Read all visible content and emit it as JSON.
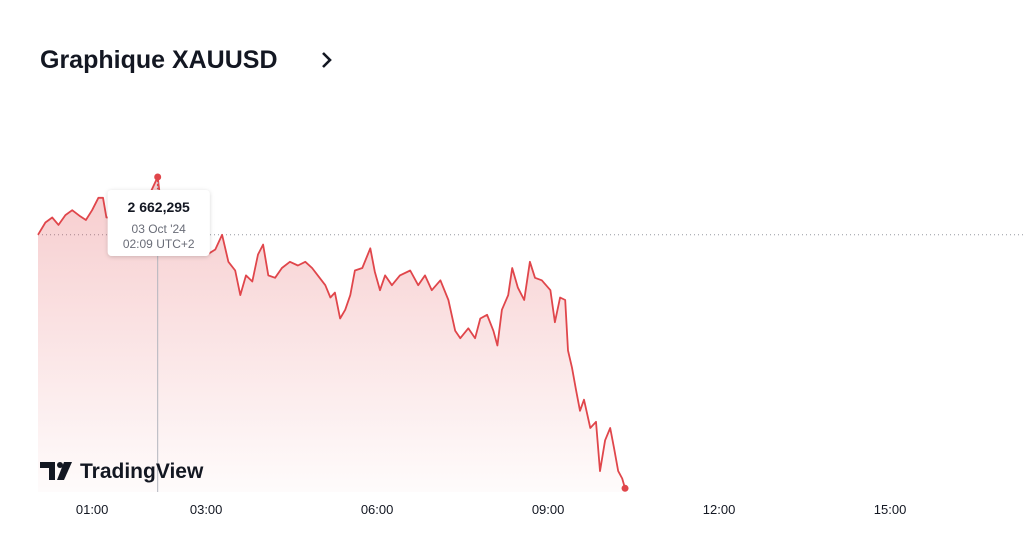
{
  "chart_data": {
    "type": "area",
    "title": "Graphique XAUUSD",
    "branding": "TradingView",
    "color": "#e0464b",
    "x": [
      0.05,
      0.18,
      0.3,
      0.41,
      0.53,
      0.65,
      0.79,
      0.89,
      1.0,
      1.11,
      1.19,
      1.25,
      1.35,
      1.46,
      1.58,
      1.7,
      1.84,
      1.98,
      2.15,
      2.23,
      2.37,
      2.54,
      2.72,
      2.89,
      3.02,
      3.16,
      3.28,
      3.39,
      3.51,
      3.6,
      3.7,
      3.81,
      3.91,
      4.0,
      4.09,
      4.21,
      4.33,
      4.47,
      4.61,
      4.74,
      4.86,
      4.96,
      5.09,
      5.18,
      5.26,
      5.35,
      5.44,
      5.53,
      5.61,
      5.74,
      5.88,
      5.96,
      6.05,
      6.14,
      6.26,
      6.4,
      6.58,
      6.72,
      6.84,
      6.96,
      7.11,
      7.25,
      7.37,
      7.46,
      7.6,
      7.72,
      7.81,
      7.93,
      8.04,
      8.11,
      8.19,
      8.3,
      8.37,
      8.47,
      8.58,
      8.68,
      8.77,
      8.89,
      9.04,
      9.12,
      9.21,
      9.3,
      9.35,
      9.42,
      9.49,
      9.56,
      9.63,
      9.74,
      9.84,
      9.91,
      10.0,
      10.09,
      10.16,
      10.23,
      10.3,
      10.35
    ],
    "values": [
      2657.6,
      2658.6,
      2659.0,
      2658.4,
      2659.2,
      2659.6,
      2659.1,
      2658.8,
      2659.6,
      2660.6,
      2660.6,
      2659.0,
      2659.0,
      2659.6,
      2659.2,
      2659.8,
      2660.0,
      2660.6,
      2662.295,
      2659.2,
      2658.4,
      2657.8,
      2657.3,
      2656.8,
      2656.0,
      2656.4,
      2657.6,
      2655.4,
      2654.7,
      2652.7,
      2654.3,
      2653.8,
      2656.0,
      2656.8,
      2654.3,
      2654.1,
      2654.9,
      2655.4,
      2655.1,
      2655.4,
      2654.9,
      2654.3,
      2653.5,
      2652.5,
      2652.9,
      2650.8,
      2651.5,
      2652.7,
      2654.7,
      2654.9,
      2656.5,
      2654.6,
      2653.1,
      2654.3,
      2653.5,
      2654.3,
      2654.7,
      2653.5,
      2654.3,
      2653.1,
      2653.9,
      2652.3,
      2649.8,
      2649.2,
      2650.0,
      2649.2,
      2650.8,
      2651.1,
      2649.8,
      2648.6,
      2651.5,
      2652.7,
      2654.9,
      2653.3,
      2652.3,
      2655.4,
      2654.1,
      2653.9,
      2653.1,
      2650.5,
      2652.5,
      2652.3,
      2648.2,
      2646.8,
      2645.0,
      2643.3,
      2644.2,
      2641.9,
      2642.4,
      2638.4,
      2640.9,
      2641.9,
      2640.2,
      2638.4,
      2637.8,
      2637.0
    ],
    "xlim": [
      0.05,
      17.35
    ],
    "ylim": [
      2636.7,
      2665.3
    ],
    "xticks": [
      {
        "value": 1,
        "label": "01:00"
      },
      {
        "value": 3,
        "label": "03:00"
      },
      {
        "value": 6,
        "label": "06:00"
      },
      {
        "value": 9,
        "label": "09:00"
      },
      {
        "value": 12,
        "label": "12:00"
      },
      {
        "value": 15,
        "label": "15:00"
      }
    ],
    "reference_line": 2657.6,
    "tooltip": {
      "value": 2662.295,
      "value_label": "2 662,295",
      "date": "03 Oct '24",
      "time": "02:09 UTC+2"
    }
  }
}
